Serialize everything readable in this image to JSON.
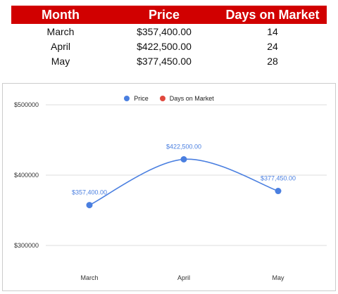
{
  "table": {
    "headers": [
      "Month",
      "Price",
      "Days on Market"
    ],
    "rows": [
      [
        "March",
        "$357,400.00",
        "14"
      ],
      [
        "April",
        "$422,500.00",
        "24"
      ],
      [
        "May",
        "$377,450.00",
        "28"
      ]
    ]
  },
  "colors": {
    "header_bg": "#d10000",
    "price_series": "#4a7fe0",
    "days_series": "#e0483d",
    "gridline": "#dddddd"
  },
  "chart_data": {
    "type": "line",
    "categories": [
      "March",
      "April",
      "May"
    ],
    "series": [
      {
        "name": "Price",
        "values": [
          357400,
          422500,
          377450
        ],
        "labels": [
          "$357,400.00",
          "$422,500.00",
          "$377,450.00"
        ],
        "color": "#4a7fe0"
      },
      {
        "name": "Days on Market",
        "values": [
          14,
          24,
          28
        ],
        "color": "#e0483d",
        "shown": false
      }
    ],
    "legend": "top-center",
    "y_ticks": [
      300000,
      400000,
      500000
    ],
    "y_tick_labels": [
      "$300000",
      "$400000",
      "$500000"
    ],
    "ylim": [
      272000,
      510000
    ],
    "grid": true,
    "smooth": true
  }
}
